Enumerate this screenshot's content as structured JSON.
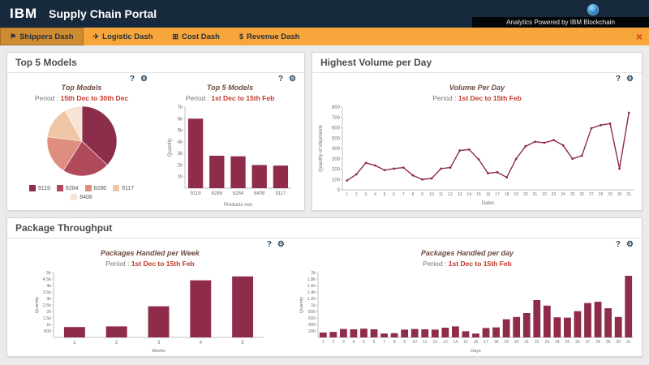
{
  "header": {
    "brand": "IBM",
    "title": "Supply Chain Portal",
    "analytics_note": "Analytics Powered by IBM Blockchain"
  },
  "nav": {
    "tabs": [
      {
        "label": "Shippers Dash",
        "glyph": "⚑",
        "active": true
      },
      {
        "label": "Logistic Dash",
        "glyph": "✈",
        "active": false
      },
      {
        "label": "Cost Dash",
        "glyph": "⊞",
        "active": false
      },
      {
        "label": "Revenue Dash",
        "glyph": "$",
        "active": false
      }
    ],
    "close_glyph": "×"
  },
  "icons": {
    "help": "?",
    "gear": "⚙"
  },
  "panels": {
    "top5": {
      "title": "Top 5 Models"
    },
    "volume": {
      "title": "Highest Volume per Day"
    },
    "throughput": {
      "title": "Package Throughput"
    }
  },
  "colors": {
    "accent": "#8e2c49",
    "header_bg": "#17293c",
    "nav_bg": "#f7a63b",
    "period": "#c0392b"
  },
  "chart_data": [
    {
      "id": "top_models_pie",
      "type": "pie",
      "title": "Top Models",
      "period_label": "Period :",
      "period": "15th Dec to 30th Dec",
      "categories": [
        "9119",
        "8284",
        "8286",
        "9117",
        "8408"
      ],
      "values": [
        37,
        22,
        18,
        15,
        8
      ],
      "colors": [
        "#8c2d4a",
        "#b04a5a",
        "#de8d7e",
        "#f0c5a4",
        "#f7e4d6"
      ],
      "legend_position": "bottom"
    },
    {
      "id": "top5_bar",
      "type": "bar",
      "title": "Top 5 Models",
      "period_label": "Period :",
      "period": "1st Dec to 15th Feb",
      "categories": [
        "9119",
        "8286",
        "8284",
        "8408",
        "9117"
      ],
      "values": [
        6000,
        2800,
        2750,
        2000,
        1950
      ],
      "color": "#8e2c49",
      "ylabel": "Quantity",
      "xlabel": "Products nos",
      "ylim": [
        0,
        7000
      ],
      "ytick_values": [
        1000,
        2000,
        3000,
        4000,
        5000,
        6000,
        7000
      ],
      "ytick_labels": [
        "1k",
        "2k",
        "3k",
        "4k",
        "5k",
        "6k",
        "7k"
      ]
    },
    {
      "id": "volume_line",
      "type": "line",
      "title": "Volume Per Day",
      "period_label": "Period :",
      "period": "1st Dec to 15th Feb",
      "categories": [
        "1",
        "2",
        "3",
        "4",
        "5",
        "6",
        "7",
        "8",
        "9",
        "10",
        "11",
        "12",
        "13",
        "14",
        "15",
        "16",
        "17",
        "18",
        "19",
        "20",
        "21",
        "22",
        "23",
        "24",
        "25",
        "26",
        "27",
        "28",
        "29",
        "30",
        "31"
      ],
      "values": [
        90,
        150,
        260,
        235,
        190,
        205,
        215,
        140,
        100,
        110,
        205,
        215,
        380,
        390,
        295,
        160,
        170,
        120,
        300,
        420,
        465,
        455,
        480,
        430,
        300,
        330,
        595,
        625,
        640,
        205,
        745
      ],
      "color": "#8e2c49",
      "ylabel": "Quantity of shipments",
      "xlabel": "Dates",
      "ylim": [
        0,
        800
      ],
      "ytick_values": [
        0,
        100,
        200,
        300,
        400,
        500,
        600,
        700,
        800
      ],
      "ytick_labels": [
        "0",
        "100",
        "200",
        "300",
        "400",
        "500",
        "600",
        "700",
        "800"
      ]
    },
    {
      "id": "week_bar",
      "type": "bar",
      "title": "Packages Handled per Week",
      "period_label": "Period :",
      "period": "1st Dec to 15th Feb",
      "categories": [
        "1",
        "2",
        "3",
        "4",
        "5"
      ],
      "values": [
        800,
        850,
        2400,
        4400,
        4700
      ],
      "color": "#8e2c49",
      "ylabel": "Quantity",
      "xlabel": "Weeks",
      "ylim": [
        0,
        5000
      ],
      "ytick_values": [
        500,
        1000,
        1500,
        2000,
        2500,
        3000,
        3500,
        4000,
        4500,
        5000
      ],
      "ytick_labels": [
        "500",
        "1k",
        "1.5k",
        "2k",
        "2.5k",
        "3k",
        "3.5k",
        "4k",
        "4.5k",
        "5k"
      ]
    },
    {
      "id": "day_bar",
      "type": "bar",
      "title": "Packages Handled per day",
      "period_label": "Period :",
      "period": "1st Dec to 15th Feb",
      "categories": [
        "1",
        "2",
        "3",
        "4",
        "5",
        "6",
        "7",
        "8",
        "9",
        "10",
        "11",
        "12",
        "13",
        "14",
        "15",
        "16",
        "17",
        "18",
        "19",
        "20",
        "21",
        "22",
        "23",
        "24",
        "25",
        "26",
        "27",
        "28",
        "29",
        "30",
        "31"
      ],
      "values": [
        150,
        170,
        260,
        250,
        270,
        250,
        120,
        130,
        240,
        260,
        250,
        240,
        300,
        340,
        190,
        120,
        290,
        310,
        560,
        630,
        750,
        1150,
        980,
        620,
        610,
        810,
        1060,
        1100,
        900,
        630,
        1900
      ],
      "color": "#8e2c49",
      "ylabel": "Quantity",
      "xlabel": "Days",
      "ylim": [
        0,
        2000
      ],
      "ytick_values": [
        200,
        400,
        600,
        800,
        1000,
        1200,
        1400,
        1600,
        1800,
        2000
      ],
      "ytick_labels": [
        "200",
        "400",
        "600",
        "800",
        "1k",
        "1.2k",
        "1.4k",
        "1.6k",
        "1.8k",
        "2k"
      ]
    }
  ]
}
